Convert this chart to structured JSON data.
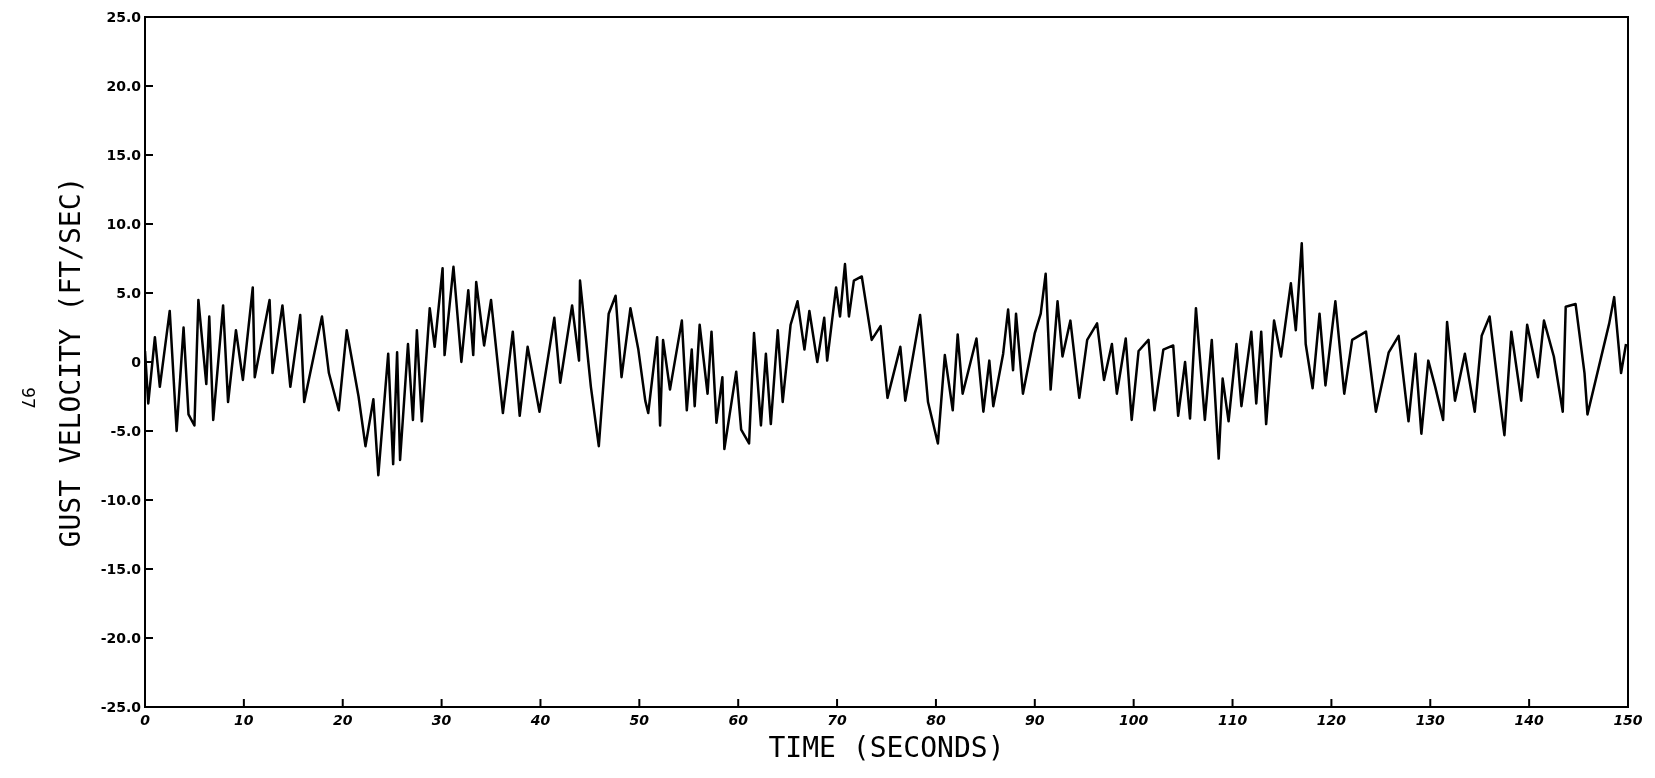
{
  "chart_data": {
    "type": "line",
    "xlabel": "TIME (SECONDS)",
    "ylabel": "GUST VELOCITY (FT/SEC)",
    "annotations": [
      "97"
    ],
    "xlim": [
      0,
      150
    ],
    "xticks": [
      0,
      10,
      20,
      30,
      40,
      50,
      60,
      70,
      80,
      90,
      100,
      110,
      120,
      130,
      140,
      150
    ],
    "ylim": [
      -25,
      25
    ],
    "yticks": [
      {
        "value": -25,
        "label": "-25.0"
      },
      {
        "value": -20,
        "label": "-20.0"
      },
      {
        "value": -15,
        "label": "-15.0"
      },
      {
        "value": -10,
        "label": "-10.0"
      },
      {
        "value": -5,
        "label": "-5.0"
      },
      0,
      {
        "value": 5,
        "label": "5.0"
      },
      {
        "value": 10,
        "label": "10.0"
      },
      {
        "value": 15,
        "label": "15.0"
      },
      {
        "value": 20,
        "label": "20.0"
      },
      {
        "value": 25,
        "label": "25.0"
      }
    ],
    "grid": false,
    "marker": "none",
    "line_style": "solid",
    "series": [
      {
        "color": "#000000",
        "x": [
          0.0,
          0.33,
          1.0,
          1.5,
          2.5,
          3.2,
          3.9,
          4.4,
          5.0,
          5.4,
          6.2,
          6.5,
          6.9,
          7.9,
          8.4,
          9.2,
          9.9,
          10.9,
          11.1,
          12.6,
          12.9,
          13.9,
          14.7,
          15.7,
          16.1,
          17.9,
          18.6,
          19.6,
          20.4,
          21.6,
          22.3,
          23.1,
          23.6,
          24.6,
          25.1,
          25.5,
          25.8,
          26.6,
          27.1,
          27.5,
          28.0,
          28.8,
          29.3,
          30.1,
          30.3,
          31.2,
          32.0,
          32.7,
          33.2,
          33.5,
          34.3,
          35.0,
          36.2,
          37.2,
          37.9,
          38.7,
          39.9,
          41.4,
          42.0,
          43.2,
          43.9,
          44.0,
          45.1,
          45.9,
          46.9,
          47.6,
          48.2,
          49.1,
          49.9,
          50.6,
          50.9,
          51.8,
          52.1,
          52.4,
          53.1,
          54.3,
          54.8,
          55.3,
          55.6,
          56.1,
          56.9,
          57.3,
          57.8,
          58.4,
          58.6,
          59.8,
          60.3,
          61.1,
          61.6,
          62.3,
          62.8,
          63.3,
          64.0,
          64.5,
          65.3,
          66.0,
          66.7,
          67.2,
          68.0,
          68.7,
          69.0,
          69.9,
          70.3,
          70.8,
          71.2,
          71.7,
          72.5,
          73.5,
          74.4,
          75.1,
          76.4,
          76.9,
          78.4,
          79.2,
          80.2,
          80.9,
          81.7,
          82.2,
          82.7,
          84.1,
          84.8,
          85.4,
          85.8,
          86.8,
          87.3,
          87.8,
          88.1,
          88.8,
          90.0,
          90.6,
          91.1,
          91.6,
          92.3,
          92.8,
          93.6,
          94.5,
          95.3,
          96.3,
          97.0,
          97.8,
          98.3,
          99.2,
          99.8,
          100.5,
          101.5,
          102.1,
          103.0,
          104.0,
          104.5,
          105.2,
          105.7,
          106.3,
          107.2,
          107.9,
          108.6,
          109.0,
          109.6,
          110.4,
          110.9,
          111.9,
          112.4,
          112.9,
          113.4,
          114.2,
          114.9,
          115.9,
          116.4,
          117.0,
          117.4,
          118.1,
          118.8,
          119.4,
          120.4,
          121.3,
          122.1,
          123.5,
          124.5,
          125.8,
          126.8,
          127.8,
          128.5,
          129.1,
          129.8,
          130.5,
          131.3,
          131.7,
          132.5,
          133.5,
          134.5,
          135.2,
          136.0,
          136.9,
          137.5,
          138.2,
          139.2,
          139.8,
          140.9,
          141.5,
          142.5,
          143.4,
          143.7,
          144.7,
          145.6,
          145.9,
          147.2,
          148.1,
          148.6,
          149.3,
          149.8
        ],
        "values": [
          0.8,
          -3.0,
          1.8,
          -1.8,
          3.7,
          -5.0,
          2.5,
          -3.8,
          -4.6,
          4.5,
          -1.6,
          3.3,
          -4.2,
          4.1,
          -2.9,
          2.3,
          -1.3,
          5.4,
          -1.1,
          4.5,
          -0.8,
          4.1,
          -1.8,
          3.4,
          -2.9,
          3.3,
          -0.8,
          -3.5,
          2.3,
          -2.5,
          -6.1,
          -2.7,
          -8.2,
          0.6,
          -7.4,
          0.7,
          -7.1,
          1.3,
          -4.2,
          2.3,
          -4.3,
          3.9,
          1.1,
          6.8,
          0.5,
          6.9,
          0.0,
          5.2,
          0.5,
          5.8,
          1.2,
          4.5,
          -3.7,
          2.2,
          -3.9,
          1.1,
          -3.6,
          3.2,
          -1.5,
          4.1,
          0.1,
          5.9,
          -1.8,
          -6.1,
          3.5,
          4.8,
          -1.1,
          3.9,
          0.9,
          -2.8,
          -3.7,
          1.8,
          -4.6,
          1.6,
          -2.0,
          3.0,
          -3.5,
          0.9,
          -3.2,
          2.7,
          -2.3,
          2.2,
          -4.4,
          -1.1,
          -6.3,
          -0.7,
          -4.9,
          -5.9,
          2.1,
          -4.6,
          0.6,
          -4.5,
          2.3,
          -2.9,
          2.7,
          4.4,
          0.9,
          3.7,
          0.0,
          3.2,
          0.1,
          5.4,
          3.3,
          7.1,
          3.3,
          5.9,
          6.2,
          1.6,
          2.6,
          -2.6,
          1.1,
          -2.8,
          3.4,
          -2.9,
          -5.9,
          0.5,
          -3.5,
          2.0,
          -2.3,
          1.7,
          -3.6,
          0.1,
          -3.2,
          0.6,
          3.8,
          -0.6,
          3.5,
          -2.3,
          2.1,
          3.5,
          6.4,
          -2.0,
          4.4,
          0.4,
          3.0,
          -2.6,
          1.6,
          2.8,
          -1.3,
          1.3,
          -2.3,
          1.7,
          -4.2,
          0.8,
          1.6,
          -3.5,
          0.9,
          1.2,
          -3.9,
          0.0,
          -4.1,
          3.9,
          -4.2,
          1.6,
          -7.0,
          -1.2,
          -4.3,
          1.3,
          -3.2,
          2.2,
          -3.0,
          2.2,
          -4.5,
          3.0,
          0.4,
          5.7,
          2.3,
          8.6,
          1.3,
          -1.9,
          3.5,
          -1.7,
          4.4,
          -2.3,
          1.6,
          2.2,
          -3.6,
          0.7,
          1.9,
          -4.3,
          0.6,
          -5.2,
          0.1,
          -1.8,
          -4.2,
          2.9,
          -2.8,
          0.6,
          -3.6,
          1.9,
          3.3,
          -2.0,
          -5.3,
          2.2,
          -2.8,
          2.7,
          -1.1,
          3.0,
          0.4,
          -3.6,
          4.0,
          4.2,
          -0.8,
          -3.8,
          0.1,
          2.8,
          4.7,
          -0.8,
          1.3
        ]
      }
    ]
  }
}
